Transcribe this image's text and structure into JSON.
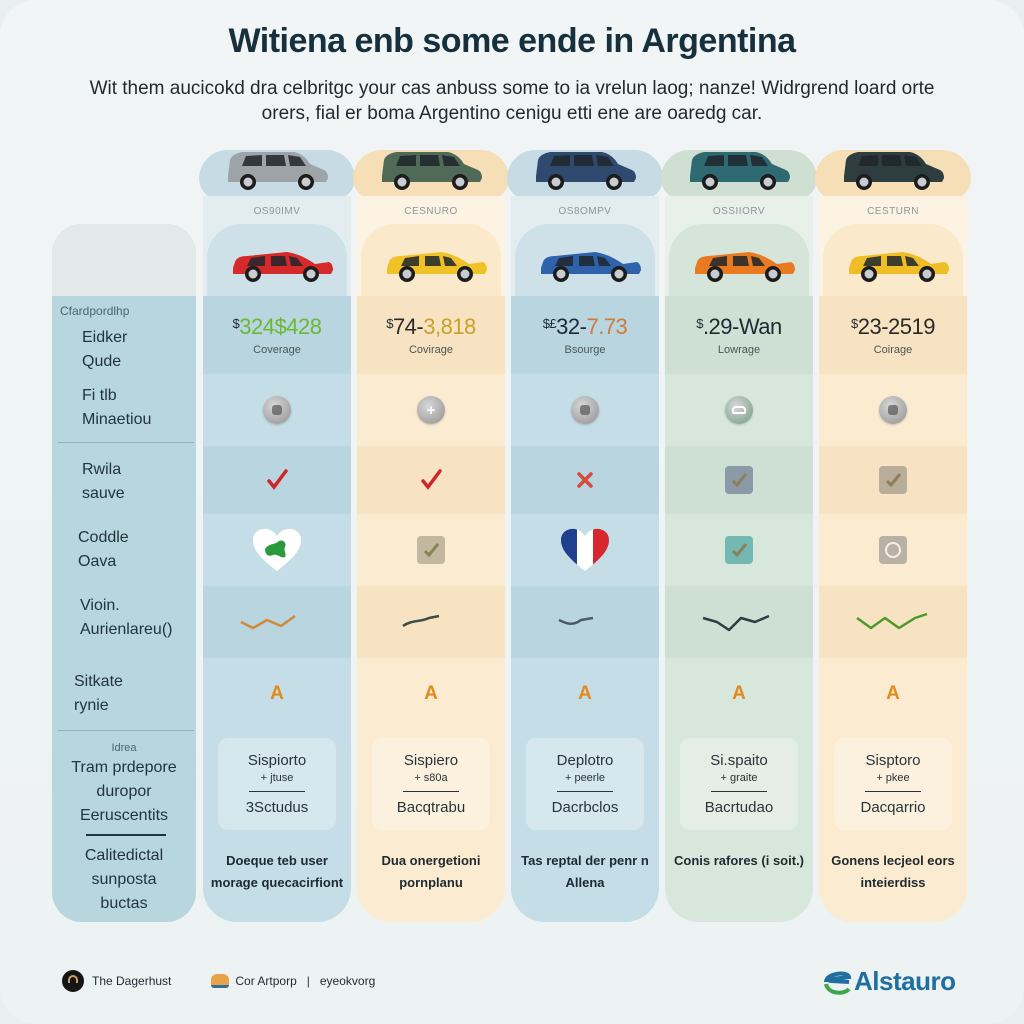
{
  "header": {
    "title": "Witiena enb some ende in Argentina",
    "subtitle": "Wit them aucicokd dra celbritgc your cas anbuss some to ia vrelun laog; nanze! Widrgrend loard orte orers, fial er boma Argentino cenigu etti ene are oaredg car."
  },
  "labels": {
    "section_title": "Cfardpordlhp",
    "rows": [
      {
        "line1": "Eidker",
        "line2": "Qude"
      },
      {
        "line1": "Fi tlb",
        "line2": "Minaetiou"
      },
      {
        "line1": "Rwila",
        "line2": "sauve"
      },
      {
        "line1": "Coddle",
        "line2": "Oava"
      },
      {
        "line1": "Vioin.",
        "line2": "Aurienlareu()"
      },
      {
        "line1": "Sitkate",
        "line2": "rynie"
      }
    ],
    "spec_small": "Idrea",
    "spec_lines": [
      "Tram prdepore",
      "duropor",
      "Eeruscentits"
    ],
    "note_lines": [
      "Calitedictal",
      "sunposta",
      "buctas"
    ]
  },
  "columns": [
    {
      "model": "OS90IMV",
      "top_car_color": "#9ea3a8",
      "car_color": "#d42a2a",
      "theme": "blue",
      "price_currency": "$",
      "price_a": "324",
      "price_b": "$428",
      "price_color_a": "#6bb833",
      "price_color_b": "#6bb833",
      "price_sub": "Coverage",
      "feature_icon": "gear-coin-icon",
      "check": "red-check",
      "badge": "heart-green",
      "trend_color": "#d08a3a",
      "grade": "A",
      "spec_1": "Sispiorto",
      "spec_2": "+ jtuse",
      "spec_3": "3Sctudus",
      "note": "Doeque teb user morage quecacirfiont"
    },
    {
      "model": "CESNURO",
      "top_car_color": "#4f6b57",
      "car_color": "#f0c228",
      "theme": "cream",
      "price_currency": "$",
      "price_a": "74-",
      "price_b": "3,818",
      "price_color_a": "#2a2a2a",
      "price_color_b": "#c9a028",
      "price_sub": "Covirage",
      "feature_icon": "plus-coin-icon",
      "check": "red-check",
      "badge": "box-check-tan",
      "trend_color": "#3c4c48",
      "grade": "A",
      "spec_1": "Sispiero",
      "spec_2": "+ s80a",
      "spec_3": "Bacqtrabu",
      "note": "Dua onergetioni pornplanu"
    },
    {
      "model": "OS8OMPV",
      "top_car_color": "#2f4a6e",
      "car_color": "#2e62aa",
      "theme": "blue",
      "price_currency": "$£",
      "price_a": "32-",
      "price_b": "7.73",
      "price_color_a": "#1e2a33",
      "price_color_b": "#d07a3a",
      "price_sub": "Bsourge",
      "feature_icon": "gear-coin-icon",
      "check": "red-x",
      "badge": "heart-flag",
      "trend_color": "#4a5c68",
      "grade": "A",
      "spec_1": "Deplotro",
      "spec_2": "+ peerle",
      "spec_3": "Dacrbclos",
      "note": "Tas reptal der penr n Allena"
    },
    {
      "model": "OSSIIORV",
      "top_car_color": "#2f6a72",
      "car_color": "#ea7a22",
      "theme": "green",
      "price_currency": "$",
      "price_a": ".29-",
      "price_b": "Wan",
      "price_color_a": "#1e2a33",
      "price_color_b": "#1e2a33",
      "price_sub": "Lowrage",
      "feature_icon": "car-coin-icon",
      "check": "box-check-slate",
      "badge": "box-check-teal",
      "trend_color": "#2e3c46",
      "grade": "A",
      "spec_1": "Si.spaito",
      "spec_2": "+ graite",
      "spec_3": "Bacrtudao",
      "note": "Conis rafores (i soit.)"
    },
    {
      "model": "CESTURN",
      "top_car_color": "#2e3e40",
      "car_color": "#f1bd26",
      "theme": "cream",
      "price_currency": "$",
      "price_a": "23-",
      "price_b": "2519",
      "price_color_a": "#2a2a2a",
      "price_color_b": "#2a2a2a",
      "price_sub": "Coirage",
      "feature_icon": "shield-coin-icon",
      "check": "box-check-tan",
      "badge": "box-circle",
      "trend_color": "#4a9a2a",
      "grade": "A",
      "spec_1": "Sisptoro",
      "spec_2": "+ pkee",
      "spec_3": "Dacqarrio",
      "note": "Gonens lecjeol eors inteierdiss"
    }
  ],
  "footer": {
    "item1": "The Dagerhust",
    "item2": "Cor Artporp",
    "item3": "eyeokvorg",
    "brand": "Alstauro"
  },
  "colors": {
    "blue_col": "#c4dde6",
    "blue_col_alt": "#b9d5df",
    "cream_col": "#fbebd0",
    "cream_col_alt": "#f7e3c1",
    "green_col": "#d8e7dc",
    "green_col_alt": "#cde0d3",
    "grade": "#e38a1c",
    "brand": "#1f6fa0"
  }
}
